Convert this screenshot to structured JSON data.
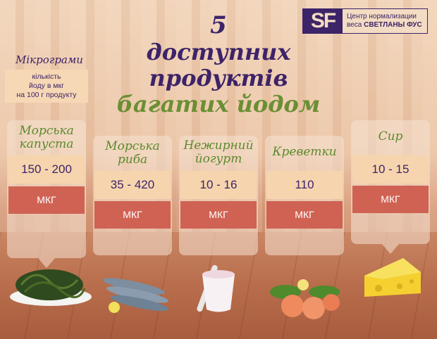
{
  "brand": {
    "mark": "SF",
    "line1": "Центр нормализации",
    "line2_prefix": "веса",
    "line2_bold": "СВЕТЛАНЫ ФУС"
  },
  "title": {
    "line1": "5",
    "line2": "доступних",
    "line3": "продуктів",
    "line4": "багатих йодом"
  },
  "legend": {
    "title": "Мікрограми",
    "line1": "кількість",
    "line2": "йоду в мкг",
    "line3": "на 100 г продукту"
  },
  "colors": {
    "purple": "#3d2368",
    "green": "#5c8a2e",
    "red": "#d06253",
    "cream": "#f6d5ae"
  },
  "products": [
    {
      "name1": "Морська",
      "name2": "капуста",
      "value": "150 - 200",
      "unit": "МКГ",
      "image": "seaweed"
    },
    {
      "name1": "Морська",
      "name2": "риба",
      "value": "35 - 420",
      "unit": "МКГ",
      "image": "fish"
    },
    {
      "name1": "Нежирний",
      "name2": "йогурт",
      "value": "10 - 16",
      "unit": "МКГ",
      "image": "yogurt"
    },
    {
      "name1": "Креветки",
      "name2": "",
      "value": "110",
      "unit": "МКГ",
      "image": "shrimp"
    },
    {
      "name1": "Сир",
      "name2": "",
      "value": "10 - 15",
      "unit": "МКГ",
      "image": "cheese"
    }
  ]
}
